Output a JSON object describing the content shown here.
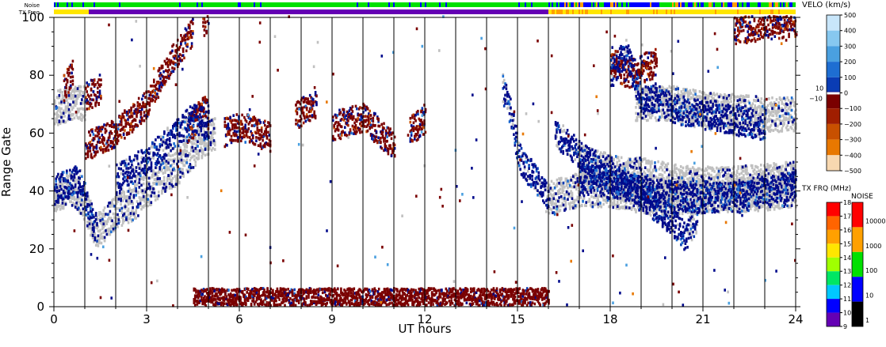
{
  "chart_data": {
    "type": "heatmap",
    "xlabel": "UT hours",
    "ylabel": "Range Gate",
    "xlim": [
      0,
      24
    ],
    "ylim": [
      0,
      100
    ],
    "x_ticks": [
      "0",
      "3",
      "6",
      "9",
      "12",
      "15",
      "18",
      "21",
      "24"
    ],
    "y_ticks": [
      "0",
      "20",
      "40",
      "60",
      "80",
      "100"
    ],
    "strips": {
      "noise_label": "Noise",
      "txfreq_label": "TX Freq"
    },
    "legends": {
      "velocity": {
        "title": "VELO (km/s)",
        "ticks": [
          "500",
          "400",
          "300",
          "200",
          "100",
          "0",
          "−100",
          "−200",
          "−300",
          "−400",
          "−500"
        ],
        "zero_band_labels": [
          "10",
          "−10"
        ],
        "colors": [
          "#c8e6fa",
          "#87c8f0",
          "#4aa0e0",
          "#1e6ed2",
          "#0a3cb4",
          "#000a8c",
          "#7a0000",
          "#a01e00",
          "#c85000",
          "#e87800",
          "#f0a050",
          "#f8d8b0"
        ]
      },
      "txfreq": {
        "title": "TX FRQ (MHz)",
        "ticks": [
          "18",
          "17",
          "16",
          "15",
          "14",
          "13",
          "12",
          "11",
          "10",
          "9"
        ],
        "colors": [
          "#ff0000",
          "#ff6400",
          "#ffa000",
          "#ffe600",
          "#a0ff00",
          "#00e664",
          "#00c8ff",
          "#0000ff",
          "#6400b4",
          "#000000"
        ]
      },
      "noise": {
        "title": "NOISE",
        "ticks": [
          "10000",
          "1000",
          "100",
          "10",
          "1"
        ],
        "colors": [
          "#ff0000",
          "#ffa000",
          "#00e000",
          "#0000ff",
          "#000000"
        ]
      }
    },
    "ground_scatter_color": "#c0c0c0",
    "series": [
      {
        "type": "ground_scatter",
        "points": [
          [
            0.0,
            38
          ],
          [
            0.5,
            41
          ],
          [
            1.0,
            35
          ],
          [
            1.3,
            26
          ],
          [
            1.6,
            28
          ],
          [
            2.0,
            33
          ],
          [
            2.5,
            35
          ],
          [
            3.0,
            40
          ],
          [
            3.5,
            44
          ],
          [
            4.0,
            48
          ],
          [
            4.5,
            54
          ],
          [
            5.0,
            58
          ],
          [
            5.2,
            60
          ]
        ]
      },
      {
        "type": "ground_scatter",
        "points": [
          [
            0.0,
            68
          ],
          [
            0.5,
            70
          ],
          [
            1.0,
            70
          ]
        ]
      },
      {
        "type": "ground_scatter",
        "points": [
          [
            16.0,
            37
          ],
          [
            17.0,
            40
          ],
          [
            18.0,
            40
          ],
          [
            19.0,
            38
          ],
          [
            20.0,
            37
          ],
          [
            21.0,
            38
          ],
          [
            22.0,
            38
          ],
          [
            23.0,
            39
          ],
          [
            24.0,
            40
          ]
        ]
      },
      {
        "type": "ground_scatter",
        "points": [
          [
            18.8,
            70
          ],
          [
            20.0,
            70
          ],
          [
            21.0,
            68
          ],
          [
            22.0,
            67
          ],
          [
            23.0,
            66
          ],
          [
            24.0,
            66
          ]
        ]
      },
      {
        "type": "ground_scatter",
        "points": [
          [
            17.0,
            50
          ],
          [
            18.0,
            46
          ],
          [
            19.0,
            45
          ],
          [
            20.0,
            43
          ],
          [
            21.0,
            42
          ],
          [
            22.0,
            42
          ],
          [
            23.0,
            43
          ],
          [
            24.0,
            44
          ]
        ]
      },
      {
        "type": "negative_velocity",
        "points": [
          [
            1.0,
            55
          ],
          [
            2.0,
            60
          ],
          [
            3.0,
            70
          ],
          [
            3.5,
            80
          ],
          [
            4.0,
            88
          ],
          [
            4.5,
            95
          ]
        ]
      },
      {
        "type": "negative_velocity",
        "points": [
          [
            1.0,
            72
          ],
          [
            1.5,
            75
          ]
        ]
      },
      {
        "type": "negative_velocity",
        "points": [
          [
            5.5,
            60
          ],
          [
            6.0,
            62
          ],
          [
            6.5,
            60
          ],
          [
            7.0,
            58
          ]
        ]
      },
      {
        "type": "negative_velocity",
        "points": [
          [
            9.0,
            62
          ],
          [
            10.0,
            65
          ],
          [
            10.5,
            60
          ],
          [
            11.0,
            55
          ]
        ]
      },
      {
        "type": "negative_velocity",
        "points": [
          [
            11.5,
            60
          ],
          [
            12.0,
            65
          ]
        ]
      },
      {
        "type": "negative_velocity",
        "points": [
          [
            7.8,
            66
          ],
          [
            8.5,
            70
          ]
        ]
      },
      {
        "type": "negative_velocity",
        "points": [
          [
            4.3,
            60
          ],
          [
            4.8,
            68
          ],
          [
            5.0,
            65
          ]
        ]
      },
      {
        "type": "negative_velocity",
        "points": [
          [
            4.8,
            98
          ],
          [
            5.0,
            100
          ]
        ]
      },
      {
        "type": "negative_velocity",
        "points": [
          [
            0.3,
            75
          ],
          [
            0.6,
            80
          ]
        ]
      },
      {
        "type": "negative_velocity",
        "points": [
          [
            18.0,
            85
          ],
          [
            18.5,
            80
          ],
          [
            19.5,
            84
          ]
        ]
      },
      {
        "type": "negative_velocity",
        "points": [
          [
            22.0,
            95
          ],
          [
            23.0,
            97
          ],
          [
            24.0,
            98
          ]
        ]
      },
      {
        "type": "positive_velocity",
        "points": [
          [
            0.0,
            40
          ],
          [
            0.8,
            44
          ],
          [
            1.3,
            26
          ]
        ]
      },
      {
        "type": "positive_velocity",
        "points": [
          [
            2.0,
            44
          ],
          [
            3.0,
            50
          ],
          [
            3.5,
            55
          ],
          [
            4.0,
            60
          ],
          [
            4.5,
            65
          ],
          [
            5.0,
            63
          ]
        ]
      },
      {
        "type": "positive_velocity",
        "points": [
          [
            14.5,
            75
          ],
          [
            14.8,
            65
          ],
          [
            15.0,
            52
          ],
          [
            15.2,
            48
          ],
          [
            15.5,
            45
          ],
          [
            15.8,
            40
          ],
          [
            16.0,
            35
          ]
        ]
      },
      {
        "type": "positive_velocity",
        "points": [
          [
            16.2,
            60
          ],
          [
            17.0,
            52
          ],
          [
            18.0,
            45
          ],
          [
            19.0,
            38
          ],
          [
            20.0,
            29
          ],
          [
            20.4,
            24
          ],
          [
            20.8,
            30
          ]
        ]
      },
      {
        "type": "positive_velocity",
        "points": [
          [
            17.0,
            45
          ],
          [
            18.0,
            42
          ],
          [
            19.0,
            40
          ],
          [
            20.0,
            38
          ],
          [
            21.0,
            37
          ],
          [
            22.0,
            38
          ],
          [
            23.0,
            40
          ],
          [
            24.0,
            42
          ]
        ]
      },
      {
        "type": "positive_velocity",
        "points": [
          [
            18.0,
            80
          ],
          [
            18.5,
            88
          ],
          [
            19.0,
            70
          ],
          [
            19.5,
            72
          ],
          [
            20.0,
            68
          ],
          [
            21.0,
            66
          ],
          [
            22.0,
            64
          ],
          [
            23.0,
            62
          ]
        ]
      },
      {
        "type": "near_range_scatter",
        "points": [
          [
            4.5,
            2
          ],
          [
            8.0,
            3
          ],
          [
            10.0,
            4
          ],
          [
            12.0,
            3
          ],
          [
            14.0,
            3
          ],
          [
            16.0,
            2
          ]
        ]
      }
    ]
  }
}
